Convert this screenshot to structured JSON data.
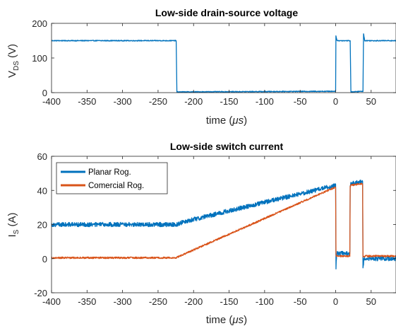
{
  "chart_data": [
    {
      "type": "line",
      "title": "Low-side drain-source voltage",
      "xlabel": "time (",
      "xlabel_unit": "μs",
      "xlabel_close": ")",
      "ylabel_main": "V",
      "ylabel_sub": "DS",
      "ylabel_unit": " (V)",
      "xlim": [
        -400,
        85
      ],
      "ylim": [
        0,
        200
      ],
      "xticks": [
        -400,
        -350,
        -300,
        -250,
        -200,
        -150,
        -100,
        -50,
        0,
        50
      ],
      "yticks": [
        0,
        100,
        200
      ],
      "grid": false,
      "series": [
        {
          "color": "#0072BD",
          "noise": 1.2,
          "x": [
            -400,
            -224.5,
            -223.5,
            -222,
            0,
            0.4,
            2,
            20.5,
            21.5,
            22.5,
            38.5,
            39.3,
            41,
            85
          ],
          "y": [
            150,
            150,
            2,
            2,
            4,
            165,
            150,
            150,
            2,
            2,
            4,
            170,
            150,
            150
          ]
        }
      ]
    },
    {
      "type": "line",
      "title": "Low-side switch current",
      "xlabel": "time (",
      "xlabel_unit": "μs",
      "xlabel_close": ")",
      "ylabel_main": "I",
      "ylabel_sub": "S",
      "ylabel_unit": " (A)",
      "xlim": [
        -400,
        85
      ],
      "ylim": [
        -20,
        60
      ],
      "xticks": [
        -400,
        -350,
        -300,
        -250,
        -200,
        -150,
        -100,
        -50,
        0,
        50
      ],
      "yticks": [
        -20,
        0,
        20,
        40,
        60
      ],
      "grid": false,
      "legend": "top-left",
      "series": [
        {
          "name": "Planar Rog.",
          "color": "#0072BD",
          "noise": 1.3,
          "x": [
            -400,
            -225,
            -210,
            0,
            0.5,
            1.5,
            3,
            20,
            20.5,
            21.5,
            38,
            38.5,
            40,
            40.5,
            85
          ],
          "y": [
            20,
            20,
            22,
            43,
            -5,
            3,
            3,
            3,
            43,
            44,
            45,
            -5,
            0,
            0,
            0
          ]
        },
        {
          "name": "Comercial Rog.",
          "color": "#D95319",
          "noise": 0.5,
          "x": [
            -400,
            -225,
            0,
            0.5,
            1.5,
            3,
            20,
            20.5,
            21.5,
            38,
            38.5,
            40,
            40.5,
            85
          ],
          "y": [
            0.5,
            0.5,
            42,
            2,
            1.5,
            1.5,
            1.5,
            42,
            43,
            44,
            1,
            1,
            1.5,
            1.5
          ]
        }
      ]
    }
  ]
}
